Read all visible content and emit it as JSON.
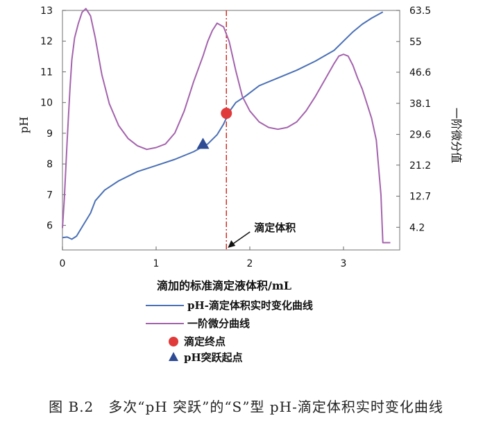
{
  "caption": "图 B.2　多次“pH 突跃”的“S”型 pH-滴定体积实时变化曲线",
  "chart_data": {
    "type": "line",
    "xlabel": "滴加的标准滴定液体积/mL",
    "ylabel": "pH",
    "y2label": "一阶微分值",
    "xlim": [
      0,
      3.6
    ],
    "ylim": [
      5.2,
      13
    ],
    "y2lim": [
      -2,
      63.5
    ],
    "x_ticks": [
      "0",
      "1",
      "2",
      "3"
    ],
    "y_ticks": [
      "6",
      "7",
      "8",
      "9",
      "10",
      "11",
      "12",
      "13"
    ],
    "y2_ticks": [
      "4.2",
      "12.7",
      "21.2",
      "29.6",
      "38.1",
      "46.6",
      "55",
      "63.5"
    ],
    "grid": false,
    "legend_position": "bottom",
    "series": [
      {
        "name": "pH-滴定体积实时变化曲线",
        "color": "#4a70b6",
        "axis": "left",
        "x": [
          0,
          0.05,
          0.1,
          0.15,
          0.2,
          0.3,
          0.35,
          0.45,
          0.6,
          0.8,
          1.0,
          1.2,
          1.4,
          1.55,
          1.65,
          1.72,
          1.78,
          1.85,
          1.95,
          2.1,
          2.3,
          2.5,
          2.7,
          2.9,
          3.0,
          3.1,
          3.2,
          3.3,
          3.42
        ],
        "y": [
          5.6,
          5.62,
          5.55,
          5.65,
          5.9,
          6.4,
          6.8,
          7.15,
          7.45,
          7.75,
          7.95,
          8.15,
          8.4,
          8.65,
          8.95,
          9.3,
          9.7,
          10.0,
          10.2,
          10.55,
          10.8,
          11.05,
          11.35,
          11.7,
          12.0,
          12.3,
          12.55,
          12.75,
          12.95
        ]
      },
      {
        "name": "一阶微分曲线",
        "color": "#a463ad",
        "axis": "right",
        "x": [
          0,
          0.02,
          0.05,
          0.08,
          0.1,
          0.13,
          0.17,
          0.21,
          0.25,
          0.3,
          0.35,
          0.42,
          0.5,
          0.6,
          0.7,
          0.8,
          0.9,
          1.0,
          1.1,
          1.2,
          1.3,
          1.4,
          1.5,
          1.55,
          1.6,
          1.65,
          1.72,
          1.78,
          1.85,
          1.92,
          2.0,
          2.1,
          2.2,
          2.3,
          2.4,
          2.5,
          2.6,
          2.7,
          2.8,
          2.9,
          2.95,
          3.0,
          3.05,
          3.1,
          3.15,
          3.2,
          3.25,
          3.3,
          3.35,
          3.4,
          3.42,
          3.45,
          3.5
        ],
        "y": [
          4,
          12,
          28,
          42,
          50,
          56,
          60,
          63,
          64,
          62,
          56,
          46,
          38,
          32,
          28.5,
          26.5,
          25.5,
          26,
          27,
          30,
          36,
          44,
          51,
          55,
          58,
          60,
          59,
          55,
          47,
          40,
          36,
          33,
          31.5,
          31,
          31.5,
          33,
          36,
          40,
          44.5,
          49,
          51,
          51.5,
          51,
          48.5,
          45,
          42,
          38,
          34,
          28,
          13,
          0,
          0,
          0
        ]
      }
    ],
    "markers": [
      {
        "name": "滴定终点",
        "shape": "circle",
        "color": "#e03a3a",
        "x": 1.75,
        "y": 9.65
      },
      {
        "name": "pH突跃起点",
        "shape": "triangle",
        "color": "#2e4b94",
        "x": 1.5,
        "y": 8.65
      }
    ],
    "vline": {
      "x": 1.75,
      "color": "#d0302a"
    },
    "annotation": {
      "text": "滴定体积",
      "arrow_x": 1.75
    }
  }
}
